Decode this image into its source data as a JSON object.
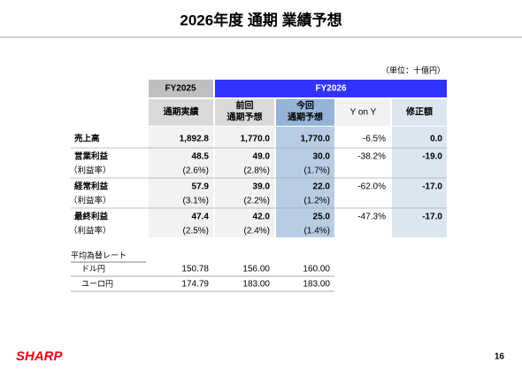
{
  "title": "2026年度 通期 業績予想",
  "unit": "（単位：十億円）",
  "table": {
    "groups": [
      "FY2025",
      "FY2026"
    ],
    "columns": [
      [
        "通期実績"
      ],
      [
        "前回",
        "通期予想"
      ],
      [
        "今回",
        "通期予想"
      ],
      [
        "Y on Y"
      ],
      [
        "修正額"
      ]
    ],
    "rows": [
      [
        "売上高",
        "1,892.8",
        "1,770.0",
        "1,770.0",
        "-6.5%",
        "0.0"
      ],
      [
        "営業利益",
        "48.5",
        "49.0",
        "30.0",
        "-38.2%",
        "-19.0"
      ],
      [
        "（利益率）",
        "(2.6%)",
        "(2.8%)",
        "(1.7%)"
      ],
      [
        "経常利益",
        "57.9",
        "39.0",
        "22.0",
        "-62.0%",
        "-17.0"
      ],
      [
        "（利益率）",
        "(3.1%)",
        "(2.2%)",
        "(1.2%)"
      ],
      [
        "最終利益",
        "47.4",
        "42.0",
        "25.0",
        "-47.3%",
        "-17.0"
      ],
      [
        "（利益率）",
        "(2.5%)",
        "(2.4%)",
        "(1.4%)"
      ]
    ]
  },
  "fx": {
    "title": "平均為替レート",
    "rows": [
      [
        "ドル円",
        "150.78",
        "156.00",
        "160.00"
      ],
      [
        "ユーロ円",
        "174.79",
        "183.00",
        "183.00"
      ]
    ]
  },
  "footer": {
    "logo": "SHARP",
    "page": "16"
  }
}
